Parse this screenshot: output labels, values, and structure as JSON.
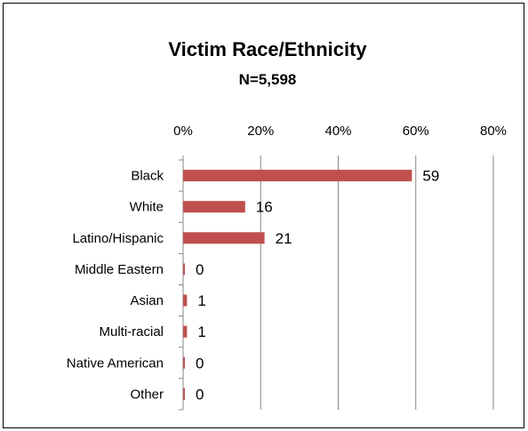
{
  "chart_data": {
    "type": "bar",
    "orientation": "horizontal",
    "title": "Victim Race/Ethnicity",
    "subtitle": "N=5,598",
    "categories": [
      "Black",
      "White",
      "Latino/Hispanic",
      "Middle Eastern",
      "Asian",
      "Multi-racial",
      "Native American",
      "Other"
    ],
    "values": [
      59,
      16,
      21,
      0,
      1,
      1,
      0,
      0
    ],
    "data_labels": [
      "59",
      "16",
      "21",
      "0",
      "1",
      "1",
      "0",
      "0"
    ],
    "xlim": [
      0,
      80
    ],
    "x_ticks": [
      0,
      20,
      40,
      60,
      80
    ],
    "x_tick_labels": [
      "0%",
      "20%",
      "40%",
      "60%",
      "80%"
    ],
    "x_axis_position": "top",
    "grid": true,
    "legend": "none",
    "bar_color": "#C0504D",
    "grid_color": "#868686"
  }
}
